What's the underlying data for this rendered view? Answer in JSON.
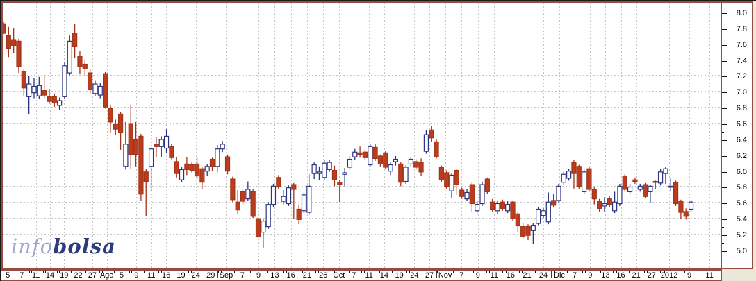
{
  "logo": {
    "part1": "info",
    "part2": "bolsa"
  },
  "colors": {
    "background": "#ece8d9",
    "plot_background": "#ffffff",
    "frame_outer": "#1a1a1a",
    "frame_inner": "#964a42",
    "grid": "#c3c3c3",
    "down_fill": "#bc3c1e",
    "down_stroke": "#a33318",
    "up_fill": "#ffffff",
    "up_stroke": "#2c3480",
    "axis_text": "#000000",
    "logo_info": "#9aa9cf",
    "logo_bolsa": "#2c3b7c"
  },
  "y_axis": {
    "labels": [
      "8.0",
      "7.8",
      "7.6",
      "7.4",
      "7.2",
      "7.0",
      "6.8",
      "6.6",
      "6.4",
      "6.2",
      "6.0",
      "5.8",
      "5.6",
      "5.4",
      "5.2",
      "5.0"
    ],
    "min": 5.0,
    "max": 8.0,
    "major_step": 0.2,
    "minor_step": 0.1,
    "side": "right"
  },
  "x_axis": {
    "months": [
      {
        "name": "",
        "labels": [
          "5",
          "7",
          "11",
          "14",
          "19",
          "22",
          "27"
        ],
        "start": 2,
        "end": 144
      },
      {
        "name": "Ago",
        "labels": [
          "Ago",
          "5",
          "9",
          "11",
          "16",
          "19",
          "24",
          "29"
        ],
        "start": 144,
        "end": 315
      },
      {
        "name": "Sep",
        "labels": [
          "Sep",
          "7",
          "9",
          "13",
          "16",
          "21",
          "26"
        ],
        "start": 315,
        "end": 478
      },
      {
        "name": "Oct",
        "labels": [
          "Oct",
          "7",
          "11",
          "14",
          "19",
          "24",
          "27"
        ],
        "start": 478,
        "end": 630
      },
      {
        "name": "Nov",
        "labels": [
          "Nov",
          "7",
          "9",
          "11",
          "16",
          "21",
          "24"
        ],
        "start": 630,
        "end": 795
      },
      {
        "name": "Dic",
        "labels": [
          "Dic",
          "7",
          "9",
          "13",
          "16",
          "21",
          "27"
        ],
        "start": 795,
        "end": 950
      },
      {
        "name": "2012",
        "labels": [
          "2012",
          "9",
          "11"
        ],
        "start": 950,
        "end": 1037
      }
    ]
  },
  "chart_data": {
    "type": "candlestick",
    "title": "",
    "xlabel": "",
    "ylabel": "",
    "ylim": [
      4.77,
      8.115
    ],
    "grid": true,
    "legend": "none",
    "series_note": "ohlc = [open, high, low, close]; down candles filled red, up candles hollow blue",
    "candles": [
      [
        7.85,
        7.88,
        7.72,
        7.73
      ],
      [
        7.7,
        7.81,
        7.43,
        7.54
      ],
      [
        7.65,
        7.79,
        7.48,
        7.57
      ],
      [
        7.63,
        7.66,
        7.23,
        7.31
      ],
      [
        7.25,
        7.27,
        6.94,
        7.04
      ],
      [
        6.93,
        7.19,
        6.71,
        7.09
      ],
      [
        6.98,
        7.16,
        6.91,
        7.06
      ],
      [
        6.94,
        7.18,
        6.9,
        7.07
      ],
      [
        7.01,
        7.19,
        6.91,
        6.95
      ],
      [
        6.93,
        7.03,
        6.84,
        6.87
      ],
      [
        6.93,
        6.97,
        6.8,
        6.85
      ],
      [
        6.82,
        6.92,
        6.76,
        6.88
      ],
      [
        6.93,
        7.37,
        6.9,
        7.32
      ],
      [
        7.23,
        7.7,
        7.2,
        7.63
      ],
      [
        7.73,
        7.85,
        7.42,
        7.56
      ],
      [
        7.44,
        7.51,
        7.22,
        7.31
      ],
      [
        7.34,
        7.4,
        7.19,
        7.28
      ],
      [
        7.23,
        7.28,
        6.96,
        7.02
      ],
      [
        6.97,
        7.13,
        6.94,
        7.09
      ],
      [
        6.95,
        7.1,
        6.91,
        7.06
      ],
      [
        7.22,
        7.24,
        6.78,
        6.8
      ],
      [
        6.78,
        6.83,
        6.48,
        6.61
      ],
      [
        6.58,
        6.64,
        6.45,
        6.52
      ],
      [
        6.71,
        6.74,
        6.26,
        6.48
      ],
      [
        6.05,
        6.61,
        6.01,
        6.33
      ],
      [
        6.59,
        6.83,
        6.02,
        6.2
      ],
      [
        6.39,
        6.61,
        6.05,
        6.2
      ],
      [
        6.43,
        6.46,
        5.61,
        5.7
      ],
      [
        5.98,
        6.02,
        5.42,
        5.86
      ],
      [
        6.05,
        6.29,
        5.73,
        6.27
      ],
      [
        6.33,
        6.42,
        6.17,
        6.3
      ],
      [
        6.3,
        6.43,
        6.17,
        6.39
      ],
      [
        6.28,
        6.52,
        6.22,
        6.43
      ],
      [
        6.3,
        6.33,
        6.14,
        6.16
      ],
      [
        6.11,
        6.17,
        5.91,
        5.96
      ],
      [
        5.88,
        6.04,
        5.85,
        6.01
      ],
      [
        6.08,
        6.17,
        5.94,
        6.01
      ],
      [
        6.07,
        6.11,
        5.96,
        6.0
      ],
      [
        6.08,
        6.17,
        5.89,
        5.93
      ],
      [
        6.02,
        6.05,
        5.76,
        5.85
      ],
      [
        5.99,
        6.08,
        5.93,
        6.05
      ],
      [
        6.14,
        6.16,
        5.99,
        6.05
      ],
      [
        6.05,
        6.32,
        5.98,
        6.27
      ],
      [
        6.27,
        6.37,
        6.23,
        6.33
      ],
      [
        6.17,
        6.2,
        5.95,
        5.99
      ],
      [
        5.89,
        5.92,
        5.6,
        5.63
      ],
      [
        5.6,
        5.75,
        5.45,
        5.5
      ],
      [
        5.73,
        5.76,
        5.57,
        5.61
      ],
      [
        5.64,
        5.86,
        5.61,
        5.76
      ],
      [
        5.73,
        5.76,
        5.4,
        5.42
      ],
      [
        5.39,
        5.41,
        5.15,
        5.16
      ],
      [
        5.22,
        5.38,
        5.02,
        5.36
      ],
      [
        5.29,
        5.6,
        5.26,
        5.57
      ],
      [
        5.57,
        5.83,
        5.54,
        5.8
      ],
      [
        5.91,
        5.94,
        5.76,
        5.79
      ],
      [
        5.61,
        5.75,
        5.57,
        5.67
      ],
      [
        5.58,
        5.81,
        5.55,
        5.78
      ],
      [
        5.82,
        5.84,
        5.39,
        5.76
      ],
      [
        5.51,
        5.56,
        5.32,
        5.38
      ],
      [
        5.49,
        5.72,
        5.46,
        5.69
      ],
      [
        5.47,
        5.95,
        5.44,
        5.8
      ],
      [
        5.96,
        6.1,
        5.89,
        6.07
      ],
      [
        5.96,
        6.05,
        5.88,
        5.98
      ],
      [
        5.91,
        6.13,
        5.88,
        6.09
      ],
      [
        6.01,
        6.13,
        5.98,
        6.1
      ],
      [
        6.0,
        6.06,
        5.8,
        5.88
      ],
      [
        5.85,
        5.88,
        5.6,
        5.82
      ],
      [
        5.95,
        6.03,
        5.8,
        5.97
      ],
      [
        6.04,
        6.18,
        6.01,
        6.14
      ],
      [
        6.17,
        6.27,
        6.13,
        6.23
      ],
      [
        6.22,
        6.3,
        6.16,
        6.2
      ],
      [
        6.23,
        6.26,
        6.13,
        6.16
      ],
      [
        6.07,
        6.33,
        6.05,
        6.3
      ],
      [
        6.29,
        6.33,
        6.12,
        6.15
      ],
      [
        6.18,
        6.2,
        6.05,
        6.08
      ],
      [
        6.22,
        6.24,
        6.02,
        6.04
      ],
      [
        5.99,
        6.1,
        5.94,
        6.07
      ],
      [
        6.11,
        6.18,
        6.06,
        6.14
      ],
      [
        6.08,
        6.1,
        5.8,
        5.85
      ],
      [
        5.86,
        6.06,
        5.83,
        6.04
      ],
      [
        6.08,
        6.17,
        6.05,
        6.14
      ],
      [
        6.11,
        6.14,
        6.01,
        6.04
      ],
      [
        6.1,
        6.15,
        5.93,
        5.98
      ],
      [
        6.24,
        6.51,
        6.21,
        6.45
      ],
      [
        6.51,
        6.56,
        6.36,
        6.41
      ],
      [
        6.36,
        6.39,
        6.15,
        6.17
      ],
      [
        6.04,
        6.06,
        5.85,
        5.88
      ],
      [
        5.97,
        6.0,
        5.77,
        5.8
      ],
      [
        5.74,
        5.96,
        5.65,
        5.94
      ],
      [
        6.0,
        6.02,
        5.69,
        5.82
      ],
      [
        5.75,
        5.78,
        5.64,
        5.67
      ],
      [
        5.64,
        5.76,
        5.61,
        5.72
      ],
      [
        5.82,
        5.85,
        5.48,
        5.58
      ],
      [
        5.49,
        5.62,
        5.46,
        5.57
      ],
      [
        5.58,
        5.85,
        5.55,
        5.82
      ],
      [
        5.89,
        5.91,
        5.7,
        5.73
      ],
      [
        5.6,
        5.64,
        5.48,
        5.51
      ],
      [
        5.49,
        5.62,
        5.45,
        5.58
      ],
      [
        5.6,
        5.63,
        5.49,
        5.52
      ],
      [
        5.49,
        5.61,
        5.46,
        5.57
      ],
      [
        5.6,
        5.62,
        5.36,
        5.39
      ],
      [
        5.45,
        5.48,
        5.22,
        5.3
      ],
      [
        5.29,
        5.33,
        5.14,
        5.17
      ],
      [
        5.29,
        5.32,
        5.12,
        5.18
      ],
      [
        5.24,
        5.33,
        5.07,
        5.3
      ],
      [
        5.33,
        5.54,
        5.3,
        5.51
      ],
      [
        5.43,
        5.52,
        5.4,
        5.49
      ],
      [
        5.35,
        5.72,
        5.32,
        5.6
      ],
      [
        5.62,
        5.7,
        5.53,
        5.56
      ],
      [
        5.62,
        5.83,
        5.59,
        5.8
      ],
      [
        5.85,
        5.98,
        5.82,
        5.95
      ],
      [
        5.9,
        6.02,
        5.87,
        5.99
      ],
      [
        6.1,
        6.13,
        5.77,
        5.96
      ],
      [
        6.05,
        6.07,
        5.77,
        5.8
      ],
      [
        5.73,
        6.01,
        5.7,
        5.98
      ],
      [
        6.02,
        6.04,
        5.73,
        5.76
      ],
      [
        5.76,
        5.79,
        5.57,
        5.64
      ],
      [
        5.61,
        5.64,
        5.48,
        5.52
      ],
      [
        5.55,
        5.66,
        5.48,
        5.58
      ],
      [
        5.64,
        5.67,
        5.54,
        5.57
      ],
      [
        5.49,
        5.73,
        5.46,
        5.6
      ],
      [
        5.58,
        5.83,
        5.55,
        5.8
      ],
      [
        5.93,
        5.95,
        5.73,
        5.76
      ],
      [
        5.73,
        5.83,
        5.7,
        5.79
      ],
      [
        5.88,
        5.91,
        5.83,
        5.86
      ],
      [
        5.76,
        5.83,
        5.73,
        5.8
      ],
      [
        5.82,
        5.84,
        5.65,
        5.67
      ],
      [
        5.73,
        5.82,
        5.59,
        5.8
      ],
      [
        5.86,
        5.87,
        5.76,
        5.855
      ],
      [
        5.84,
        6.02,
        5.81,
        5.98
      ],
      [
        5.96,
        6.04,
        5.83,
        6.02
      ],
      [
        5.79,
        5.9,
        5.73,
        5.8
      ],
      [
        5.85,
        5.87,
        5.55,
        5.58
      ],
      [
        5.61,
        5.63,
        5.39,
        5.47
      ],
      [
        5.48,
        5.52,
        5.38,
        5.42
      ],
      [
        5.51,
        5.63,
        5.48,
        5.6
      ]
    ]
  }
}
